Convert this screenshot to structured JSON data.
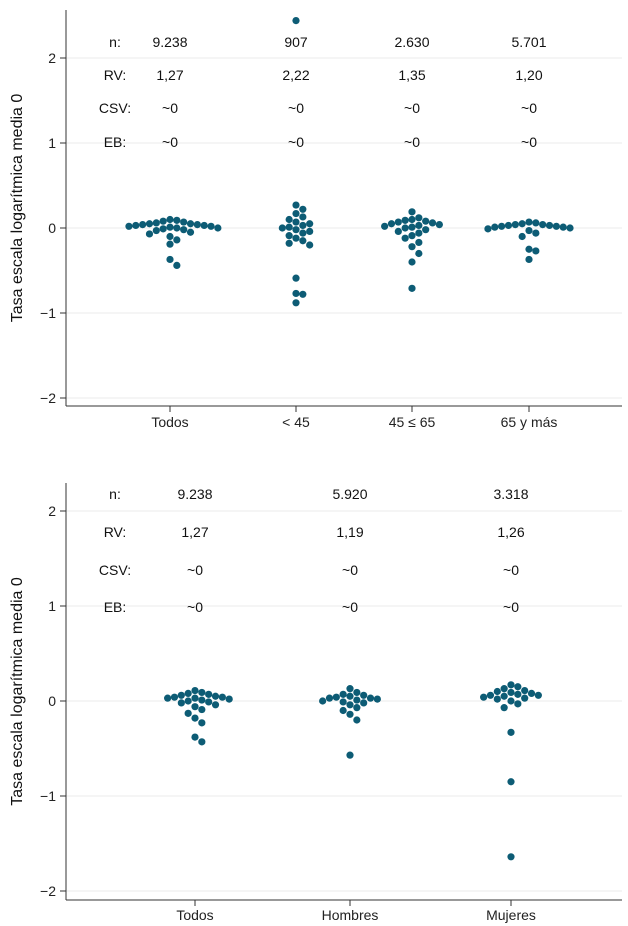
{
  "colors": {
    "point": "#0d5c75",
    "grid": "#ebebeb",
    "axis": "#333333"
  },
  "chart_data": [
    {
      "type": "scatter",
      "title": "",
      "xlabel": "",
      "ylabel": "Tasa escala logarítmica media 0",
      "ylim": [
        -2.1,
        2.6
      ],
      "yticks": [
        -2,
        -1,
        0,
        1,
        2
      ],
      "ytick_labels": [
        "−2",
        "−1",
        "0",
        "1",
        "2"
      ],
      "grid": true,
      "categories": [
        "Todos",
        "< 45",
        "45 ≤ 65",
        "65 y más"
      ],
      "stat_labels": [
        "n:",
        "RV:",
        "CSV:",
        "EB:"
      ],
      "stats": [
        [
          "9.238",
          "1,27",
          "~0",
          "~0"
        ],
        [
          "907",
          "2,22",
          "~0",
          "~0"
        ],
        [
          "2.630",
          "1,35",
          "~0",
          "~0"
        ],
        [
          "5.701",
          "1,20",
          "~0",
          "~0"
        ]
      ],
      "series": [
        {
          "values": [
            0.1,
            0.09,
            0.08,
            0.07,
            0.06,
            0.05,
            0.05,
            0.04,
            0.04,
            0.03,
            0.03,
            0.02,
            0.02,
            0.01,
            0.0,
            0.0,
            -0.01,
            -0.02,
            -0.03,
            -0.05,
            -0.07,
            -0.1,
            -0.14,
            -0.19,
            -0.37,
            -0.44
          ]
        },
        {
          "values": [
            2.44,
            0.27,
            0.22,
            0.17,
            0.13,
            0.1,
            0.07,
            0.05,
            0.03,
            0.01,
            0.0,
            -0.02,
            -0.04,
            -0.06,
            -0.09,
            -0.12,
            -0.15,
            -0.18,
            -0.2,
            -0.59,
            -0.77,
            -0.78,
            -0.88
          ]
        },
        {
          "values": [
            0.19,
            0.12,
            0.1,
            0.09,
            0.08,
            0.07,
            0.06,
            0.05,
            0.04,
            0.03,
            0.02,
            0.01,
            0.0,
            -0.02,
            -0.04,
            -0.06,
            -0.09,
            -0.12,
            -0.17,
            -0.22,
            -0.3,
            -0.4,
            -0.71
          ]
        },
        {
          "values": [
            0.07,
            0.06,
            0.05,
            0.04,
            0.04,
            0.03,
            0.03,
            0.02,
            0.02,
            0.01,
            0.01,
            0.0,
            -0.01,
            -0.03,
            -0.06,
            -0.1,
            -0.25,
            -0.27,
            -0.37
          ]
        }
      ]
    },
    {
      "type": "scatter",
      "title": "",
      "xlabel": "",
      "ylabel": "Tasa escala logarítmica media 0",
      "ylim": [
        -2.1,
        2.1
      ],
      "yticks": [
        -2,
        -1,
        0,
        1,
        2
      ],
      "ytick_labels": [
        "−2",
        "−1",
        "0",
        "1",
        "2"
      ],
      "grid": true,
      "categories": [
        "Todos",
        "Hombres",
        "Mujeres"
      ],
      "stat_labels": [
        "n:",
        "RV:",
        "CSV:",
        "EB:"
      ],
      "stats": [
        [
          "9.238",
          "1,27",
          "~0",
          "~0"
        ],
        [
          "5.920",
          "1,19",
          "~0",
          "~0"
        ],
        [
          "3.318",
          "1,26",
          "~0",
          "~0"
        ]
      ],
      "series": [
        {
          "values": [
            0.11,
            0.09,
            0.08,
            0.07,
            0.06,
            0.05,
            0.04,
            0.04,
            0.03,
            0.03,
            0.02,
            0.01,
            0.0,
            -0.01,
            -0.02,
            -0.04,
            -0.06,
            -0.09,
            -0.13,
            -0.18,
            -0.23,
            -0.38,
            -0.43
          ]
        },
        {
          "values": [
            0.13,
            0.09,
            0.07,
            0.06,
            0.05,
            0.04,
            0.03,
            0.03,
            0.02,
            0.01,
            0.0,
            -0.01,
            -0.02,
            -0.04,
            -0.07,
            -0.1,
            -0.14,
            -0.2,
            -0.57
          ]
        },
        {
          "values": [
            0.17,
            0.15,
            0.13,
            0.11,
            0.1,
            0.09,
            0.08,
            0.07,
            0.06,
            0.06,
            0.05,
            0.04,
            0.03,
            0.02,
            0.0,
            -0.03,
            -0.07,
            -0.33,
            -0.85,
            -1.64
          ]
        }
      ]
    }
  ]
}
